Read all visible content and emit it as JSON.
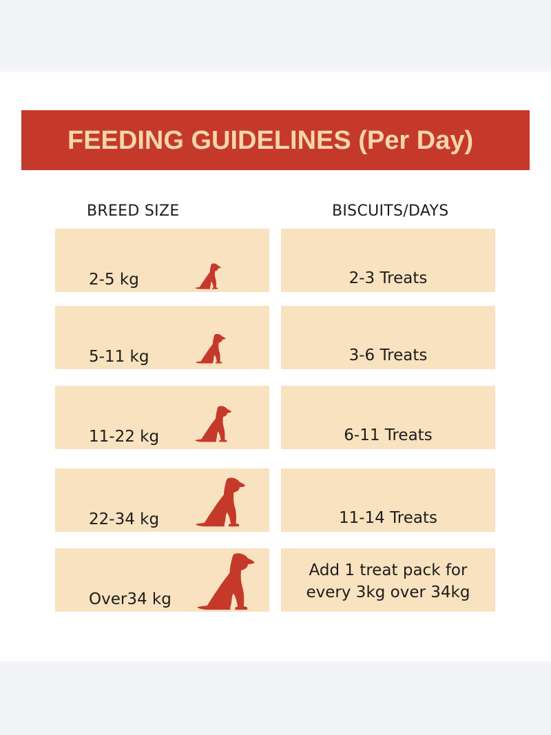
{
  "title": "FEEDING GUIDELINES (Per Day)",
  "columns": {
    "left": "BREED SIZE",
    "right": "BISCUITS/DAYS"
  },
  "rows": [
    {
      "weight": "2-5 kg",
      "treats": "2-3 Treats",
      "icon": "dog-icon"
    },
    {
      "weight": "5-11 kg",
      "treats": "3-6 Treats",
      "icon": "dog-icon"
    },
    {
      "weight": "11-22 kg",
      "treats": "6-11 Treats",
      "icon": "dog-icon"
    },
    {
      "weight": "22-34 kg",
      "treats": "11-14 Treats",
      "icon": "dog-icon"
    },
    {
      "weight": "Over34 kg",
      "treats": "Add 1 treat pack for every 3kg over 34kg",
      "icon": "dog-icon"
    }
  ],
  "colors": {
    "banner": "#c5392b",
    "banner_text": "#f6d6ac",
    "cell": "#f9e2bf",
    "dog": "#c5392b",
    "outer_background": "#f3f4f7"
  }
}
